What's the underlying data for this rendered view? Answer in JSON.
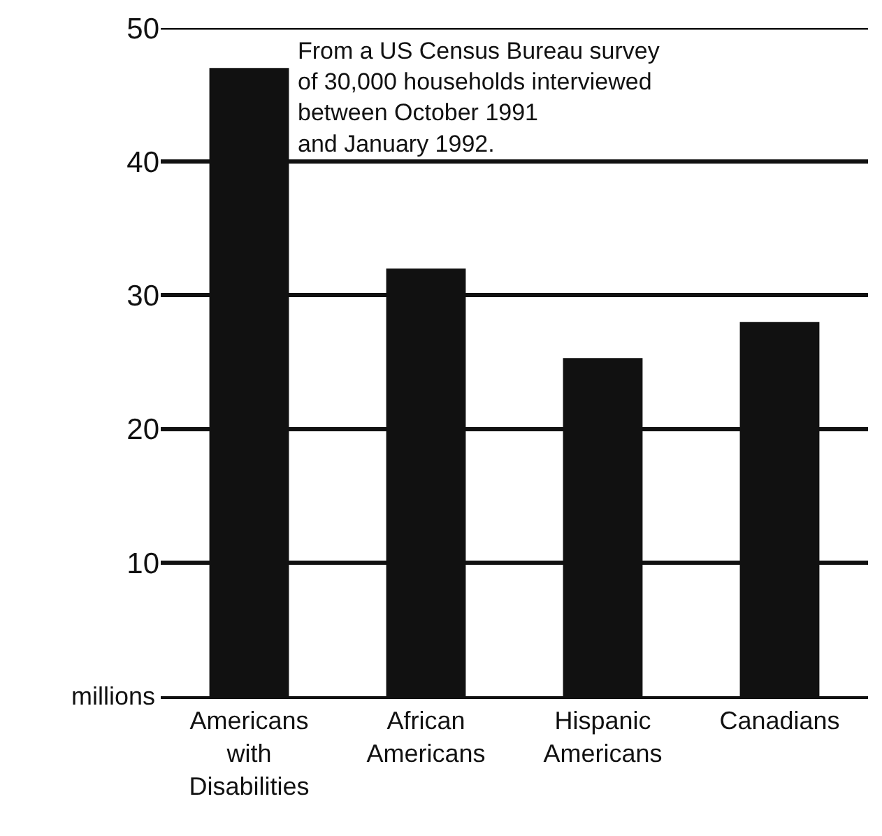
{
  "chart_data": {
    "type": "bar",
    "ylabel": "millions",
    "categories": [
      "Americans\nwith\nDisabilities",
      "African\nAmericans",
      "Hispanic\nAmericans",
      "Canadians"
    ],
    "values": [
      47,
      32,
      25.3,
      28
    ],
    "color": "#111111",
    "ylim": [
      0,
      50
    ],
    "yticks": [
      10,
      20,
      30,
      40,
      50
    ],
    "grid": "y",
    "annotations": [
      "From a US Census Bureau survey\nof 30,000 households interviewed\nbetween October 1991\nand January 1992."
    ]
  }
}
